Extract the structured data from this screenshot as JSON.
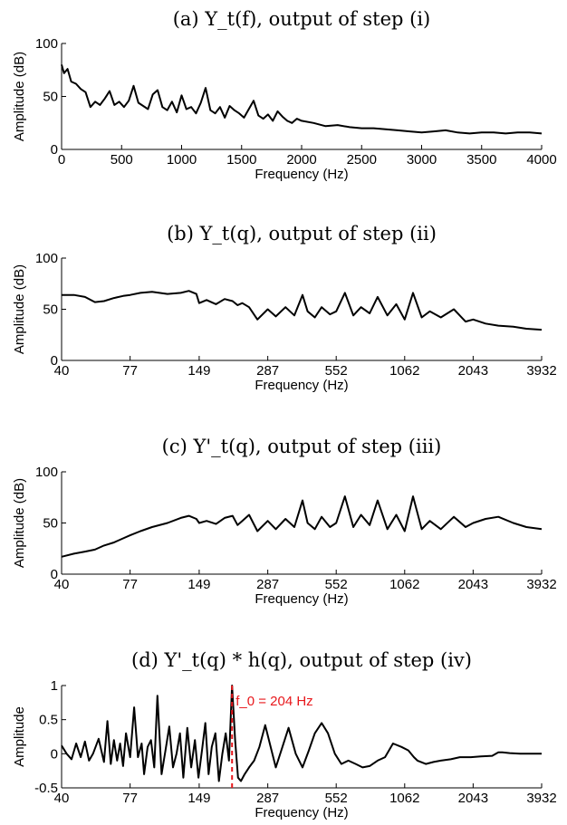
{
  "chart_data": [
    {
      "type": "line",
      "title": "(a) Y_t(f), output of step (i)",
      "xlabel": "Frequency (Hz)",
      "ylabel": "Amplitude (dB)",
      "xscale": "linear",
      "xlim": [
        0,
        4000
      ],
      "ylim": [
        0,
        100
      ],
      "xticks": [
        0,
        500,
        1000,
        1500,
        2000,
        2500,
        3000,
        3500,
        4000
      ],
      "yticks": [
        0,
        50,
        100
      ],
      "series": [
        {
          "x": [
            0,
            20,
            50,
            80,
            120,
            160,
            200,
            240,
            280,
            320,
            360,
            400,
            440,
            480,
            520,
            560,
            600,
            640,
            680,
            720,
            760,
            800,
            840,
            880,
            920,
            960,
            1000,
            1040,
            1080,
            1120,
            1160,
            1200,
            1240,
            1280,
            1320,
            1360,
            1400,
            1440,
            1480,
            1520,
            1560,
            1600,
            1640,
            1680,
            1720,
            1760,
            1800,
            1840,
            1880,
            1920,
            1960,
            2000,
            2100,
            2200,
            2300,
            2400,
            2500,
            2600,
            2700,
            2800,
            2900,
            3000,
            3100,
            3200,
            3300,
            3400,
            3500,
            3600,
            3700,
            3800,
            3900,
            4000
          ],
          "values": [
            80,
            72,
            76,
            64,
            62,
            57,
            54,
            40,
            45,
            42,
            48,
            55,
            42,
            45,
            40,
            46,
            60,
            44,
            41,
            38,
            52,
            56,
            40,
            37,
            45,
            35,
            51,
            38,
            40,
            34,
            44,
            58,
            37,
            34,
            40,
            30,
            41,
            37,
            34,
            30,
            38,
            46,
            32,
            29,
            33,
            27,
            36,
            31,
            27,
            25,
            29,
            27,
            25,
            22,
            23,
            21,
            20,
            20,
            19,
            18,
            17,
            16,
            17,
            18,
            16,
            15,
            16,
            16,
            15,
            16,
            16,
            15
          ]
        }
      ]
    },
    {
      "type": "line",
      "title": "(b) Y_t(q), output of step (ii)",
      "xlabel": "Frequency (Hz)",
      "ylabel": "Amplitude (dB)",
      "xscale": "log",
      "xlim": [
        40,
        3932
      ],
      "ylim": [
        0,
        100
      ],
      "xticks": [
        40,
        77,
        149,
        287,
        552,
        1062,
        2043,
        3932
      ],
      "yticks": [
        0,
        50,
        100
      ],
      "series": [
        {
          "x": [
            40,
            45,
            50,
            55,
            60,
            66,
            72,
            77,
            85,
            95,
            110,
            125,
            135,
            145,
            149,
            160,
            175,
            190,
            205,
            215,
            225,
            240,
            260,
            287,
            310,
            340,
            370,
            400,
            420,
            450,
            480,
            520,
            552,
            600,
            650,
            700,
            760,
            820,
            900,
            980,
            1062,
            1150,
            1250,
            1350,
            1500,
            1700,
            1900,
            2043,
            2300,
            2600,
            3000,
            3400,
            3932
          ],
          "values": [
            64,
            64,
            62,
            57,
            58,
            61,
            63,
            64,
            66,
            67,
            65,
            66,
            68,
            65,
            56,
            59,
            55,
            60,
            58,
            54,
            56,
            52,
            40,
            50,
            43,
            52,
            44,
            64,
            48,
            42,
            52,
            45,
            48,
            66,
            44,
            52,
            46,
            62,
            44,
            55,
            40,
            66,
            42,
            48,
            42,
            50,
            38,
            40,
            36,
            34,
            33,
            31,
            30
          ]
        }
      ]
    },
    {
      "type": "line",
      "title": "(c) Y'_t(q), output of step (iii)",
      "xlabel": "Frequency (Hz)",
      "ylabel": "Amplitude (dB)",
      "xscale": "log",
      "xlim": [
        40,
        3932
      ],
      "ylim": [
        0,
        100
      ],
      "xticks": [
        40,
        77,
        149,
        287,
        552,
        1062,
        2043,
        3932
      ],
      "yticks": [
        0,
        50,
        100
      ],
      "series": [
        {
          "x": [
            40,
            45,
            50,
            55,
            60,
            66,
            72,
            77,
            85,
            95,
            110,
            125,
            135,
            145,
            149,
            160,
            175,
            190,
            205,
            215,
            225,
            240,
            260,
            287,
            310,
            340,
            370,
            400,
            420,
            450,
            480,
            520,
            552,
            600,
            650,
            700,
            760,
            820,
            900,
            980,
            1062,
            1150,
            1250,
            1350,
            1500,
            1700,
            1900,
            2043,
            2300,
            2600,
            3000,
            3400,
            3932
          ],
          "values": [
            17,
            20,
            22,
            24,
            28,
            31,
            35,
            38,
            42,
            46,
            50,
            55,
            57,
            54,
            50,
            52,
            49,
            55,
            57,
            48,
            52,
            58,
            42,
            52,
            44,
            54,
            46,
            72,
            50,
            44,
            56,
            46,
            50,
            76,
            46,
            58,
            48,
            72,
            44,
            58,
            42,
            76,
            44,
            52,
            44,
            56,
            46,
            50,
            54,
            56,
            50,
            46,
            44
          ]
        }
      ]
    },
    {
      "type": "line",
      "title": "(d) Y'_t(q) * h(q), output of step (iv)",
      "xlabel": "Frequency (Hz)",
      "ylabel": "Amplitude",
      "xscale": "log",
      "xlim": [
        40,
        3932
      ],
      "ylim": [
        -0.5,
        1
      ],
      "xticks": [
        40,
        77,
        149,
        287,
        552,
        1062,
        2043,
        3932
      ],
      "yticks": [
        -0.5,
        0,
        0.5,
        1
      ],
      "annotation": {
        "text": "f_0 = 204 Hz",
        "x": 204,
        "color": "#e8181c"
      },
      "series": [
        {
          "x": [
            40,
            42,
            44,
            46,
            48,
            50,
            52,
            54,
            57,
            60,
            62,
            64,
            66,
            68,
            70,
            72,
            74,
            77,
            80,
            83,
            86,
            88,
            91,
            94,
            97,
            100,
            104,
            108,
            112,
            116,
            120,
            124,
            128,
            133,
            138,
            143,
            148,
            153,
            158,
            163,
            168,
            174,
            180,
            186,
            192,
            198,
            204,
            210,
            216,
            222,
            230,
            240,
            252,
            265,
            280,
            295,
            310,
            330,
            350,
            375,
            400,
            425,
            450,
            480,
            510,
            545,
            580,
            620,
            665,
            710,
            760,
            820,
            880,
            950,
            1030,
            1100,
            1160,
            1200,
            1300,
            1400,
            1500,
            1650,
            1800,
            2000,
            2200,
            2450,
            2600,
            2700,
            2900,
            3200,
            3600,
            3932
          ],
          "values": [
            0.12,
            0.0,
            -0.08,
            0.15,
            -0.05,
            0.18,
            -0.1,
            0.0,
            0.22,
            -0.12,
            0.48,
            -0.15,
            0.2,
            -0.1,
            0.15,
            -0.18,
            0.3,
            -0.05,
            0.68,
            -0.05,
            0.15,
            -0.3,
            0.1,
            0.2,
            -0.2,
            0.85,
            -0.3,
            0.05,
            0.4,
            -0.2,
            0.0,
            0.3,
            -0.35,
            0.38,
            -0.2,
            0.2,
            -0.35,
            0.05,
            0.45,
            -0.3,
            0.1,
            0.3,
            -0.4,
            0.0,
            0.3,
            -0.1,
            1.0,
            0.2,
            -0.35,
            -0.4,
            -0.3,
            -0.2,
            -0.1,
            0.1,
            0.42,
            0.1,
            -0.2,
            0.1,
            0.38,
            0.0,
            -0.2,
            0.05,
            0.3,
            0.45,
            0.3,
            0.0,
            -0.15,
            -0.1,
            -0.15,
            -0.2,
            -0.18,
            -0.1,
            -0.05,
            0.15,
            0.1,
            0.05,
            -0.05,
            -0.1,
            -0.15,
            -0.12,
            -0.1,
            -0.08,
            -0.05,
            -0.05,
            -0.04,
            -0.03,
            0.02,
            0.02,
            0.01,
            0.0,
            0.0,
            0.0
          ]
        }
      ]
    }
  ]
}
